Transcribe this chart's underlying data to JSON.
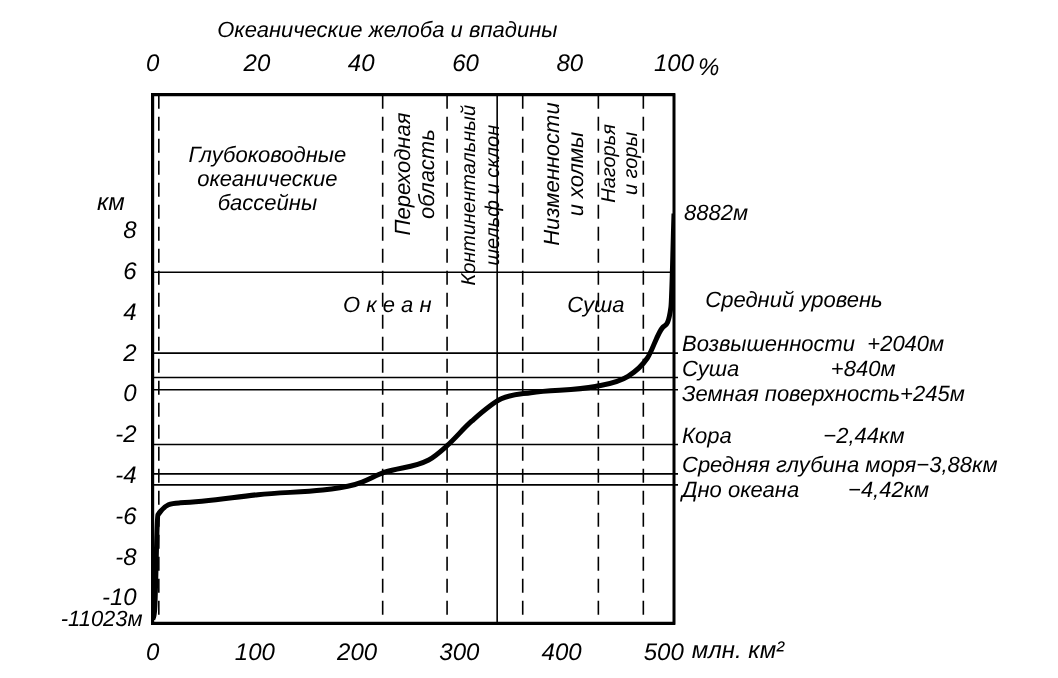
{
  "chart_data": {
    "type": "line",
    "xlabel": "млн. км²",
    "ylabel": "км",
    "x2label": "%",
    "x": [
      0,
      2,
      3,
      4,
      5,
      27,
      103,
      198,
      227,
      270,
      288,
      312,
      341,
      370,
      433,
      465,
      484,
      499,
      507,
      510
    ],
    "series": [
      {
        "color": "#000000",
        "values": [
          -11.023,
          -10.5,
          -9,
          -7,
          -5.9,
          -5.3,
          -4.9,
          -4.4,
          -3.8,
          -3.2,
          -2.5,
          -1.3,
          -0.2,
          0.1,
          0.4,
          0.9,
          1.8,
          3.3,
          4.3,
          8.882
        ]
      }
    ],
    "xlim": [
      0,
      510
    ],
    "xticks": [
      0,
      100,
      200,
      300,
      400,
      500
    ],
    "x2lim": [
      0,
      100
    ],
    "x2ticks": [
      0,
      20,
      40,
      60,
      80,
      100
    ],
    "ylim": [
      -11.2,
      14.7
    ],
    "yticks": [
      -10,
      -8,
      -6,
      -4,
      -2,
      0,
      2,
      4,
      6,
      8
    ],
    "grid": false,
    "legend": false,
    "marker": "none",
    "line_style": "solid",
    "ref_lines": [
      {
        "axis": "y",
        "value": 6
      },
      {
        "axis": "y",
        "value": 2.04,
        "label": "Возвышенности  +2040м"
      },
      {
        "axis": "y",
        "value": 0.84,
        "label": "Суша               +840м"
      },
      {
        "axis": "y",
        "value": 0.245,
        "label": "Земная поверхность+245м"
      },
      {
        "axis": "y",
        "value": -2.44,
        "label": "Кора               −2,44км"
      },
      {
        "axis": "y",
        "value": -3.88,
        "label": "Средняя глубина моря−3,88км"
      },
      {
        "axis": "y",
        "value": -4.42,
        "label": "Дно океана        −4,42км"
      },
      {
        "axis": "x",
        "value": 337
      },
      {
        "axis": "x",
        "value": 480,
        "line_style": "dashed"
      },
      {
        "axis": "x",
        "value": 6,
        "line_style": "dashed"
      },
      {
        "axis": "x",
        "value": 225,
        "line_style": "dashed"
      },
      {
        "axis": "x",
        "value": 288,
        "line_style": "dashed"
      },
      {
        "axis": "x",
        "value": 362,
        "line_style": "dashed"
      },
      {
        "axis": "x",
        "value": 436,
        "line_style": "dashed"
      }
    ],
    "annotations": [
      "Океанические желоба и впадины",
      "Глубоководные океанические бассейны",
      "Переходная область",
      "Континентальный шельф и склон",
      "Низменности и холмы",
      "Нагорья и горы",
      "Средний уровень",
      "О к е а н",
      "Суша",
      {
        "text": "8882м",
        "x": 510,
        "y": 8.882
      },
      {
        "text": "-11023м",
        "x": 0,
        "y": -11.023
      }
    ]
  }
}
